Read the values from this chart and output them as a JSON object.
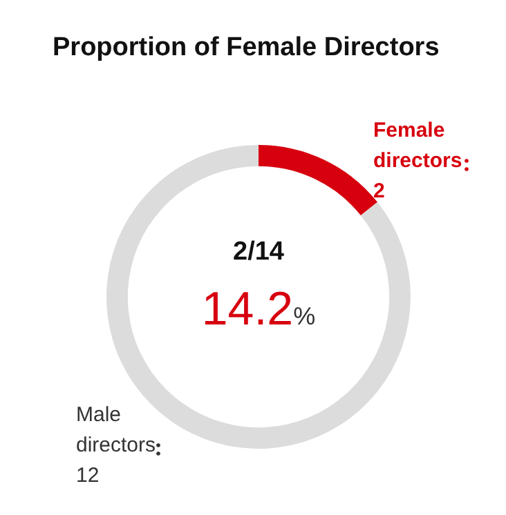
{
  "chart_data": {
    "type": "donut",
    "title": "Proportion of Female Directors",
    "categories": [
      "Female directors",
      "Male directors"
    ],
    "values": [
      2,
      12
    ],
    "colors": [
      "#d7000f",
      "#dcdcdc"
    ],
    "data_labels": true,
    "legend": false,
    "annotations": [
      "2/14",
      "14.2%"
    ]
  }
}
